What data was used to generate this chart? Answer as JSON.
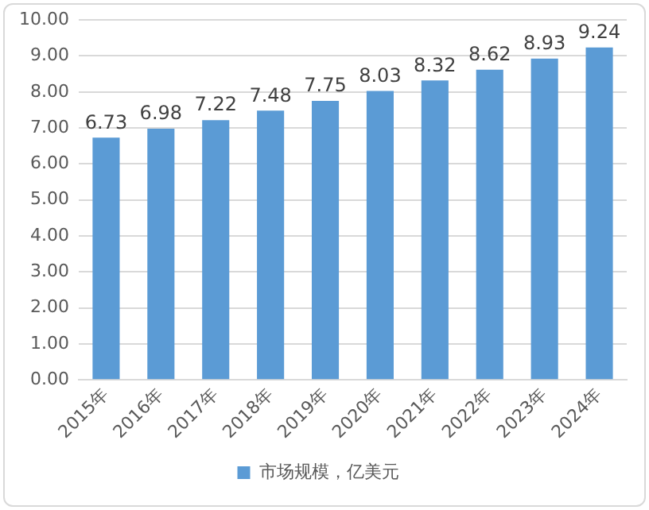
{
  "chart_data": {
    "type": "bar",
    "categories": [
      "2015年",
      "2016年",
      "2017年",
      "2018年",
      "2019年",
      "2020年",
      "2021年",
      "2022年",
      "2023年",
      "2024年"
    ],
    "series": [
      {
        "name": "市场规模，亿美元",
        "color": "#5b9bd5",
        "values": [
          6.73,
          6.98,
          7.22,
          7.48,
          7.75,
          8.03,
          8.32,
          8.62,
          8.93,
          9.24
        ]
      }
    ],
    "ylim": [
      0,
      10
    ],
    "yticks": [
      {
        "value": 0,
        "label": "0.00"
      },
      {
        "value": 1,
        "label": "1.00"
      },
      {
        "value": 2,
        "label": "2.00"
      },
      {
        "value": 3,
        "label": "3.00"
      },
      {
        "value": 4,
        "label": "4.00"
      },
      {
        "value": 5,
        "label": "5.00"
      },
      {
        "value": 6,
        "label": "6.00"
      },
      {
        "value": 7,
        "label": "7.00"
      },
      {
        "value": 8,
        "label": "8.00"
      },
      {
        "value": 9,
        "label": "9.00"
      },
      {
        "value": 10,
        "label": "10.00"
      }
    ],
    "grid": "y",
    "legend": "bottom",
    "data_labels": true
  }
}
